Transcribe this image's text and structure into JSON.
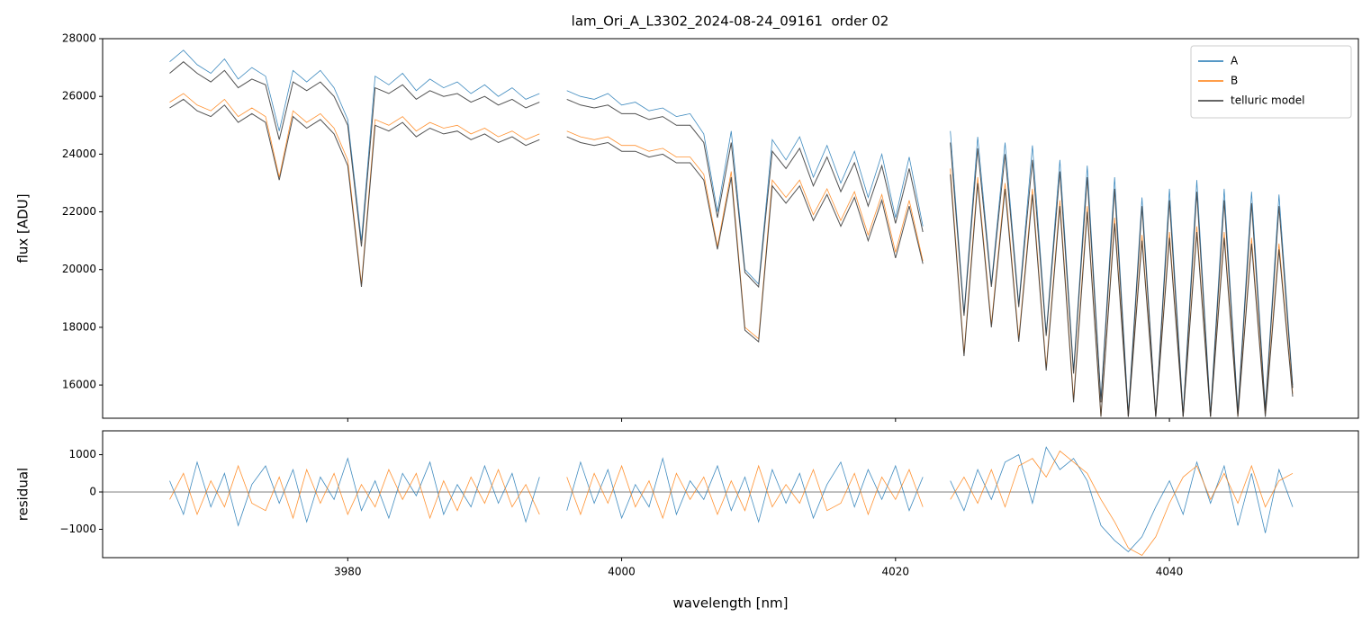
{
  "chart_data": [
    {
      "type": "line",
      "title": "lam_Ori_A_L3302_2024-08-24_09161  order 02",
      "y_label": "flux [ADU]",
      "ylim": [
        14850,
        28000
      ],
      "yticks": [
        16000,
        18000,
        20000,
        22000,
        24000,
        26000,
        28000
      ],
      "legend": "upper right",
      "x": [
        3967,
        3968,
        3969,
        3970,
        3971,
        3972,
        3973,
        3974,
        3975,
        3976,
        3977,
        3978,
        3979,
        3980,
        3981,
        3982,
        3983,
        3984,
        3985,
        3986,
        3987,
        3988,
        3989,
        3990,
        3991,
        3992,
        3993,
        3994,
        3995,
        3996,
        3997,
        3998,
        3999,
        4000,
        4001,
        4002,
        4003,
        4004,
        4005,
        4006,
        4007,
        4008,
        4009,
        4010,
        4011,
        4012,
        4013,
        4014,
        4015,
        4016,
        4017,
        4018,
        4019,
        4020,
        4021,
        4022,
        4023,
        4024,
        4025,
        4026,
        4027,
        4028,
        4029,
        4030,
        4031,
        4032,
        4033,
        4034,
        4035,
        4036,
        4037,
        4038,
        4039,
        4040,
        4041,
        4042,
        4043,
        4044,
        4045,
        4046,
        4047,
        4048,
        4049
      ],
      "series": [
        {
          "name": "A",
          "color": "#1f77b4",
          "values": [
            27200,
            27600,
            27100,
            26800,
            27300,
            26600,
            27000,
            26700,
            24800,
            26900,
            26500,
            26900,
            26300,
            25200,
            21000,
            26700,
            26400,
            26800,
            26200,
            26600,
            26300,
            26500,
            26100,
            26400,
            26000,
            26300,
            25900,
            26100,
            null,
            26200,
            26000,
            25900,
            26100,
            25700,
            25800,
            25500,
            25600,
            25300,
            25400,
            24700,
            22000,
            24800,
            20000,
            19500,
            24500,
            23800,
            24600,
            23200,
            24300,
            23000,
            24100,
            22500,
            24000,
            21800,
            23900,
            21500,
            null,
            24800,
            18500,
            24600,
            19500,
            24400,
            18800,
            24300,
            17800,
            23800,
            16500,
            23600,
            15500,
            23200,
            15000,
            22500,
            14900,
            22800,
            15000,
            23100,
            15000,
            22800,
            15100,
            22700,
            15200,
            22600,
            16000
          ]
        },
        {
          "name": "B",
          "color": "#ff7f0e",
          "values": [
            25800,
            26100,
            25700,
            25500,
            25900,
            25300,
            25600,
            25300,
            23200,
            25500,
            25100,
            25400,
            24900,
            23800,
            19500,
            25200,
            25000,
            25300,
            24800,
            25100,
            24900,
            25000,
            24700,
            24900,
            24600,
            24800,
            24500,
            24700,
            null,
            24800,
            24600,
            24500,
            24600,
            24300,
            24300,
            24100,
            24200,
            23900,
            23900,
            23300,
            20800,
            23400,
            18000,
            17600,
            23100,
            22500,
            23100,
            21900,
            22800,
            21700,
            22700,
            21200,
            22600,
            20600,
            22400,
            20300,
            null,
            23500,
            17100,
            23200,
            18100,
            23000,
            17600,
            22800,
            16600,
            22400,
            15500,
            22200,
            14900,
            21800,
            14900,
            21200,
            14900,
            21300,
            14900,
            21500,
            14900,
            21300,
            14900,
            21100,
            15000,
            20900,
            15700
          ]
        },
        {
          "name": "telluric model",
          "color": "#333333",
          "values": [
            26800,
            27200,
            26800,
            26500,
            26900,
            26300,
            26600,
            26400,
            24500,
            26500,
            26200,
            26500,
            26000,
            25000,
            20800,
            26300,
            26100,
            26400,
            25900,
            26200,
            26000,
            26100,
            25800,
            26000,
            25700,
            25900,
            25600,
            25800,
            null,
            25900,
            25700,
            25600,
            25700,
            25400,
            25400,
            25200,
            25300,
            25000,
            25000,
            24400,
            21800,
            24400,
            19900,
            19400,
            24100,
            23500,
            24200,
            22900,
            23900,
            22700,
            23700,
            22200,
            23600,
            21600,
            23500,
            21300,
            null,
            24400,
            18400,
            24200,
            19400,
            24000,
            18700,
            23800,
            17700,
            23400,
            16400,
            23200,
            15400,
            22800,
            14900,
            22200,
            14900,
            22400,
            14900,
            22700,
            14900,
            22400,
            15000,
            22300,
            15100,
            22200,
            15900
          ]
        },
        {
          "color": "#333333",
          "values": [
            25600,
            25900,
            25500,
            25300,
            25700,
            25100,
            25400,
            25100,
            23100,
            25300,
            24900,
            25200,
            24700,
            23600,
            19400,
            25000,
            24800,
            25100,
            24600,
            24900,
            24700,
            24800,
            24500,
            24700,
            24400,
            24600,
            24300,
            24500,
            null,
            24600,
            24400,
            24300,
            24400,
            24100,
            24100,
            23900,
            24000,
            23700,
            23700,
            23100,
            20700,
            23200,
            17900,
            17500,
            22900,
            22300,
            22900,
            21700,
            22600,
            21500,
            22500,
            21000,
            22400,
            20400,
            22200,
            20200,
            null,
            23300,
            17000,
            23000,
            18000,
            22800,
            17500,
            22600,
            16500,
            22200,
            15400,
            22000,
            14900,
            21600,
            14900,
            21000,
            14900,
            21100,
            14900,
            21300,
            14900,
            21100,
            14900,
            20900,
            14900,
            20700,
            15600
          ]
        }
      ]
    },
    {
      "type": "line",
      "y_label": "residual",
      "x_label": "wavelength [nm]",
      "xlim": [
        3962.1,
        4053.8
      ],
      "xticks": [
        3980,
        4000,
        4020,
        4040
      ],
      "ylim": [
        -1760,
        1640
      ],
      "yticks": [
        {
          "value": -1000,
          "label": "−1000"
        },
        0,
        1000
      ],
      "hline": 0,
      "x": [
        3967,
        3968,
        3969,
        3970,
        3971,
        3972,
        3973,
        3974,
        3975,
        3976,
        3977,
        3978,
        3979,
        3980,
        3981,
        3982,
        3983,
        3984,
        3985,
        3986,
        3987,
        3988,
        3989,
        3990,
        3991,
        3992,
        3993,
        3994,
        3995,
        3996,
        3997,
        3998,
        3999,
        4000,
        4001,
        4002,
        4003,
        4004,
        4005,
        4006,
        4007,
        4008,
        4009,
        4010,
        4011,
        4012,
        4013,
        4014,
        4015,
        4016,
        4017,
        4018,
        4019,
        4020,
        4021,
        4022,
        4023,
        4024,
        4025,
        4026,
        4027,
        4028,
        4029,
        4030,
        4031,
        4032,
        4033,
        4034,
        4035,
        4036,
        4037,
        4038,
        4039,
        4040,
        4041,
        4042,
        4043,
        4044,
        4045,
        4046,
        4047,
        4048,
        4049
      ],
      "series": [
        {
          "color": "#1f77b4",
          "values": [
            300,
            -600,
            800,
            -400,
            500,
            -900,
            200,
            700,
            -300,
            600,
            -800,
            400,
            -200,
            900,
            -500,
            300,
            -700,
            500,
            -100,
            800,
            -600,
            200,
            -400,
            700,
            -300,
            500,
            -800,
            400,
            null,
            -500,
            800,
            -300,
            600,
            -700,
            200,
            -400,
            900,
            -600,
            300,
            -200,
            700,
            -500,
            400,
            -800,
            600,
            -300,
            500,
            -700,
            200,
            800,
            -400,
            600,
            -200,
            700,
            -500,
            400,
            null,
            300,
            -500,
            600,
            -200,
            800,
            1000,
            -300,
            1200,
            600,
            900,
            300,
            -900,
            -1300,
            -1600,
            -1200,
            -400,
            300,
            -600,
            800,
            -300,
            700,
            -900,
            500,
            -1100,
            600,
            -400
          ]
        },
        {
          "color": "#ff7f0e",
          "values": [
            -200,
            500,
            -600,
            300,
            -400,
            700,
            -300,
            -500,
            400,
            -700,
            600,
            -300,
            500,
            -600,
            200,
            -400,
            600,
            -200,
            500,
            -700,
            300,
            -500,
            400,
            -300,
            600,
            -400,
            200,
            -600,
            null,
            400,
            -600,
            500,
            -300,
            700,
            -400,
            300,
            -700,
            500,
            -200,
            400,
            -600,
            300,
            -500,
            700,
            -400,
            200,
            -300,
            600,
            -500,
            -300,
            500,
            -600,
            400,
            -200,
            600,
            -400,
            null,
            -200,
            400,
            -300,
            600,
            -400,
            700,
            900,
            400,
            1100,
            800,
            500,
            -200,
            -800,
            -1500,
            -1700,
            -1200,
            -300,
            400,
            700,
            -200,
            500,
            -300,
            700,
            -400,
            300,
            500
          ]
        }
      ]
    }
  ]
}
